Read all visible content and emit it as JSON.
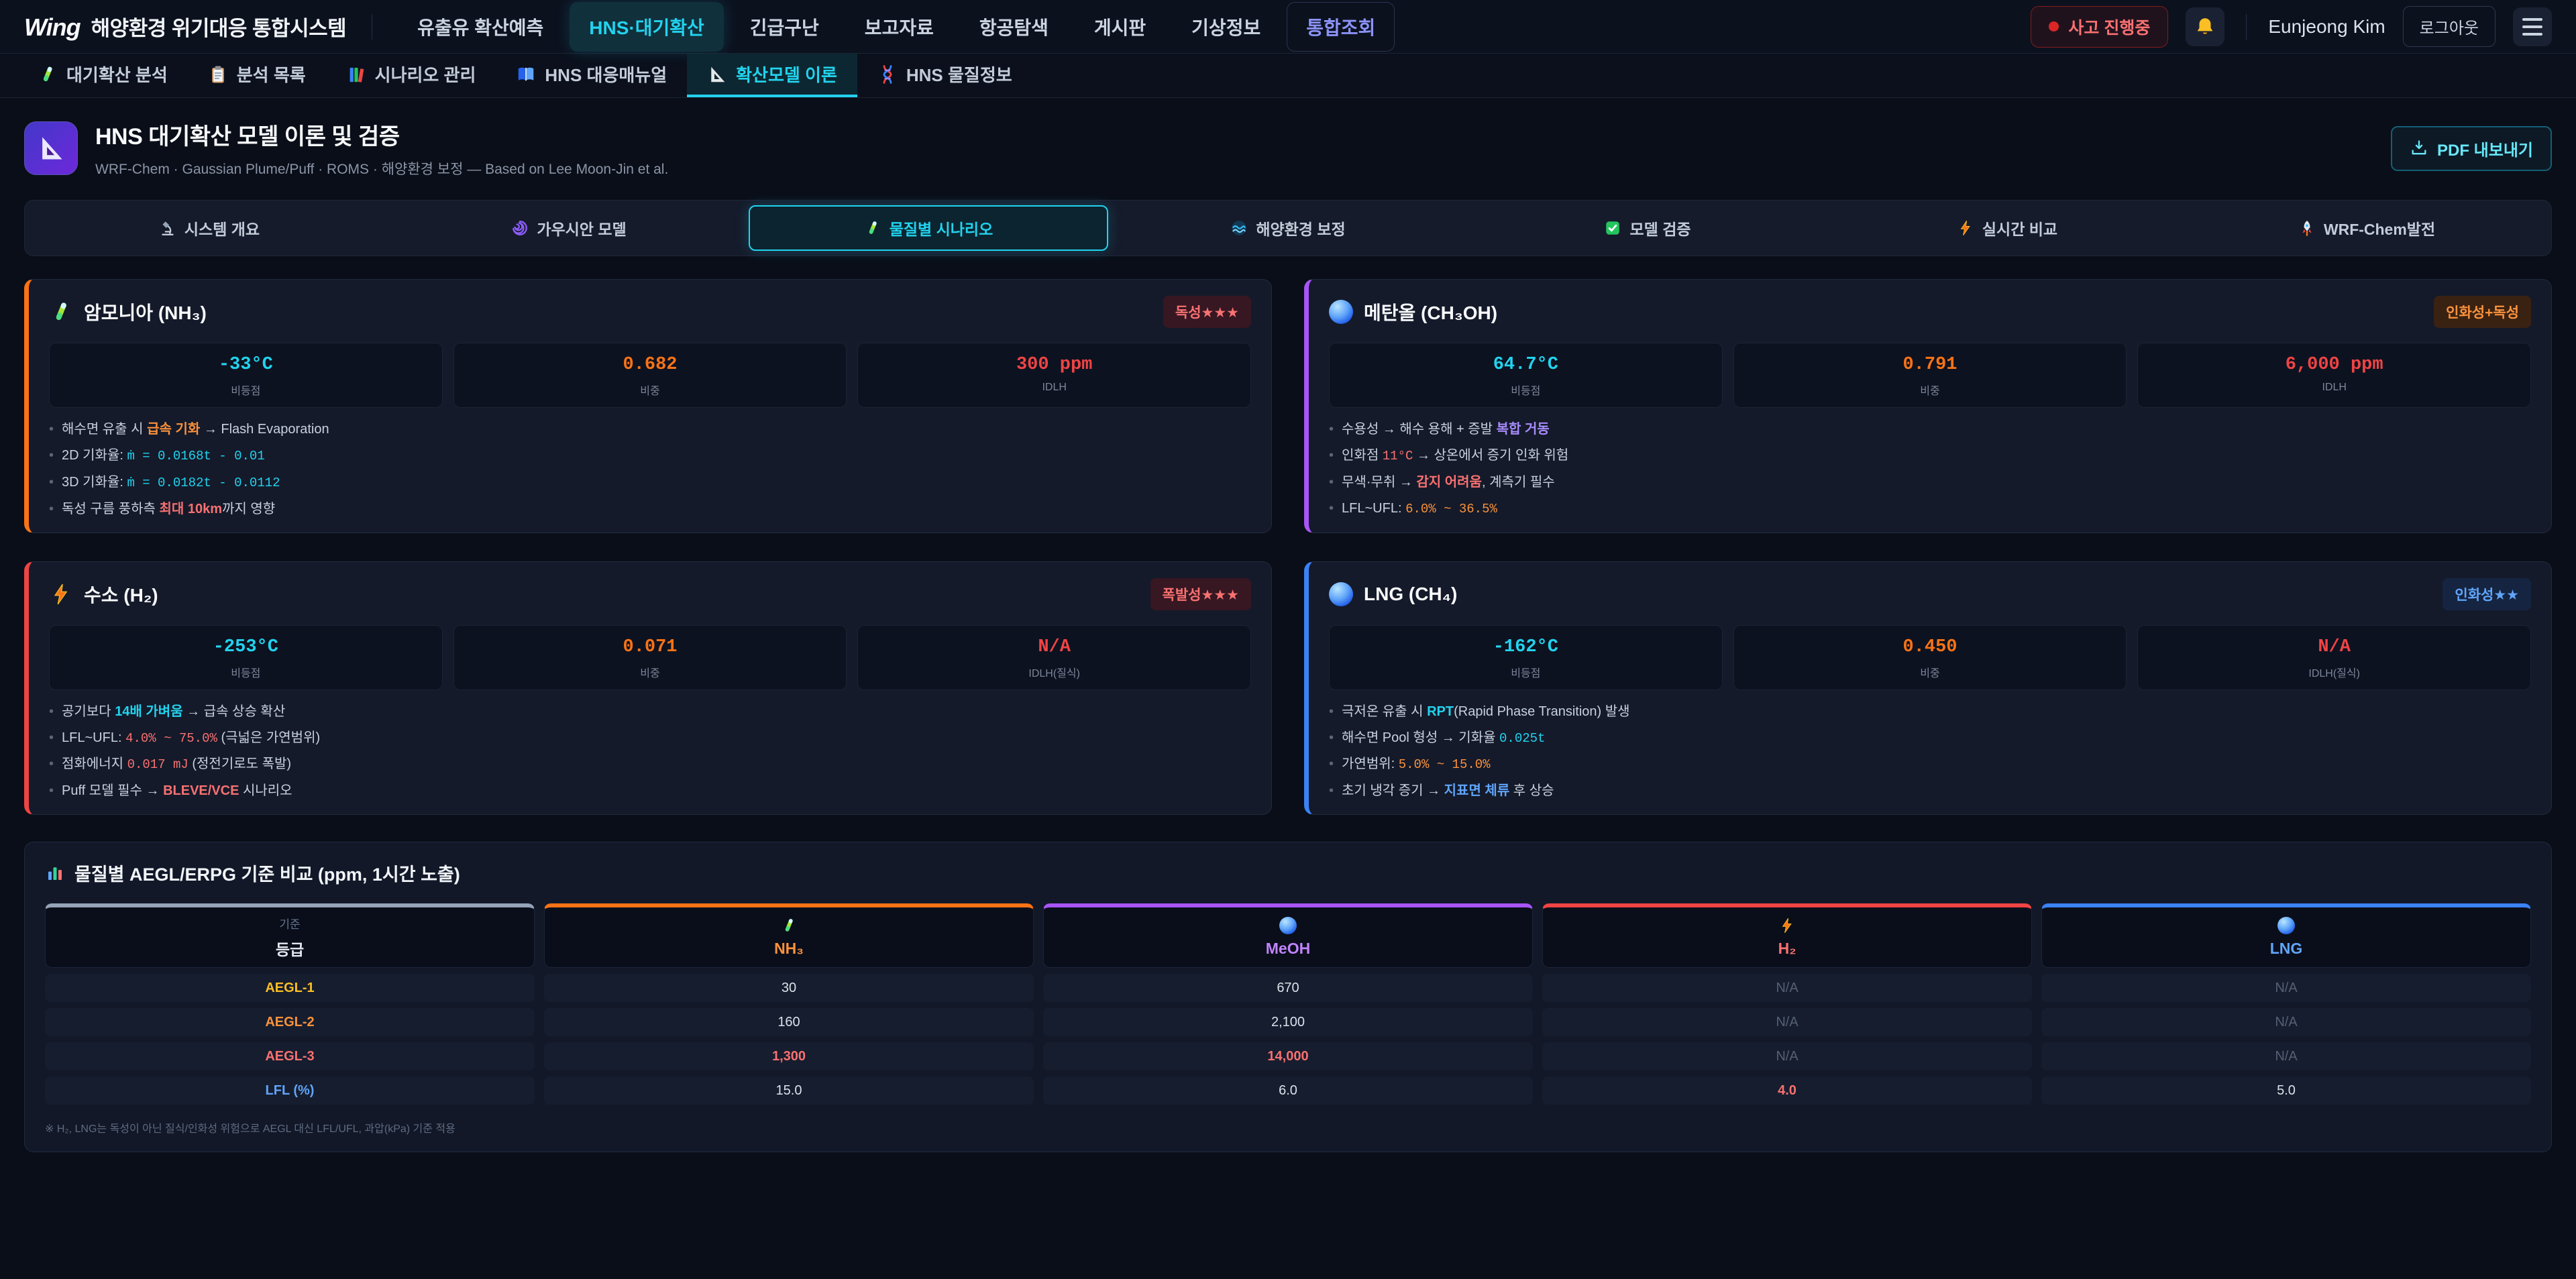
{
  "topnav": {
    "logo_mark": "Wing",
    "logo_text": "해양환경 위기대응 통합시스템",
    "items": [
      {
        "id": "oil-spill-forecast",
        "label": "유출유 확산예측",
        "state": "normal"
      },
      {
        "id": "hns-air-diffusion",
        "label": "HNS·대기확산",
        "state": "active"
      },
      {
        "id": "emergency-rescue",
        "label": "긴급구난",
        "state": "normal"
      },
      {
        "id": "reports",
        "label": "보고자료",
        "state": "normal"
      },
      {
        "id": "air-search",
        "label": "항공탐색",
        "state": "normal"
      },
      {
        "id": "board",
        "label": "게시판",
        "state": "normal"
      },
      {
        "id": "weather-info",
        "label": "기상정보",
        "state": "normal"
      },
      {
        "id": "integrated-search",
        "label": "통합조회",
        "state": "accent"
      }
    ],
    "incident_badge": "사고 진행중",
    "user_name": "Eunjeong Kim",
    "logout_label": "로그아웃"
  },
  "subtabs": [
    {
      "id": "air-diffusion-analysis",
      "label": "대기확산 분석",
      "icon": "test-tube",
      "active": false
    },
    {
      "id": "analysis-list",
      "label": "분석 목록",
      "icon": "clipboard",
      "active": false
    },
    {
      "id": "scenario-management",
      "label": "시나리오 관리",
      "icon": "books",
      "active": false
    },
    {
      "id": "hns-response-manual",
      "label": "HNS 대응매뉴얼",
      "icon": "open-book",
      "active": false
    },
    {
      "id": "diffusion-model-theory",
      "label": "확산모델 이론",
      "icon": "set-square",
      "active": true
    },
    {
      "id": "hns-substance-info",
      "label": "HNS 물질정보",
      "icon": "dna",
      "active": false
    }
  ],
  "header": {
    "title": "HNS 대기확산 모델 이론 및 검증",
    "subtitle": "WRF-Chem · Gaussian Plume/Puff · ROMS · 해양환경 보정 — Based on Lee Moon-Jin et al.",
    "pdf_button": "PDF 내보내기"
  },
  "section_tabs": [
    {
      "id": "system-overview",
      "label": "시스템 개요",
      "icon": "microscope",
      "active": false
    },
    {
      "id": "gaussian-model",
      "label": "가우시안 모델",
      "icon": "swirl",
      "active": false
    },
    {
      "id": "substance-scenarios",
      "label": "물질별 시나리오",
      "icon": "test-tube",
      "active": true
    },
    {
      "id": "marine-env-correction",
      "label": "해양환경 보정",
      "icon": "wave",
      "active": false
    },
    {
      "id": "model-validation",
      "label": "모델 검증",
      "icon": "check",
      "active": false
    },
    {
      "id": "realtime-comparison",
      "label": "실시간 비교",
      "icon": "bolt",
      "active": false
    },
    {
      "id": "wrf-chem-evolution",
      "label": "WRF-Chem발전",
      "icon": "rocket",
      "active": false
    }
  ],
  "cards": [
    {
      "id": "nh3",
      "accent": "#f97316",
      "icon": "test-tube",
      "title": "암모니아 (NH₃)",
      "badge": {
        "label": "독성★★★",
        "text": "#f87171",
        "bg": "#371722"
      },
      "stats": [
        {
          "value": "-33°C",
          "color": "#22d3ee",
          "label": "비등점"
        },
        {
          "value": "0.682",
          "color": "#f97316",
          "label": "비중"
        },
        {
          "value": "300 ppm",
          "color": "#ef4444",
          "label": "IDLH"
        }
      ],
      "bullets": [
        [
          {
            "t": "해수면 유출 시 "
          },
          {
            "t": "급속 기화",
            "s": "hl-o"
          },
          {
            "t": " → Flash Evaporation"
          }
        ],
        [
          {
            "t": "2D 기화율: "
          },
          {
            "t": "ṁ = 0.0168t - 0.01",
            "s": "m-c"
          }
        ],
        [
          {
            "t": "3D 기화율: "
          },
          {
            "t": "ṁ = 0.0182t - 0.0112",
            "s": "m-c"
          }
        ],
        [
          {
            "t": "독성 구름 풍하측 "
          },
          {
            "t": "최대 10km",
            "s": "hl-r"
          },
          {
            "t": "까지 영향"
          }
        ]
      ]
    },
    {
      "id": "meoh",
      "accent": "#a855f7",
      "icon": "sphere",
      "title": "메탄올 (CH₃OH)",
      "badge": {
        "label": "인화성+독성",
        "text": "#fb923c",
        "bg": "#3a2212"
      },
      "stats": [
        {
          "value": "64.7°C",
          "color": "#22d3ee",
          "label": "비등점"
        },
        {
          "value": "0.791",
          "color": "#f97316",
          "label": "비중"
        },
        {
          "value": "6,000 ppm",
          "color": "#ef4444",
          "label": "IDLH"
        }
      ],
      "bullets": [
        [
          {
            "t": "수용성 → 해수 용해 + 증발 "
          },
          {
            "t": "복합 거동",
            "s": "hl-p"
          }
        ],
        [
          {
            "t": "인화점 "
          },
          {
            "t": "11°C",
            "s": "m-r"
          },
          {
            "t": " → 상온에서 증기 인화 위험"
          }
        ],
        [
          {
            "t": "무색·무취 → "
          },
          {
            "t": "감지 어려움",
            "s": "hl-r"
          },
          {
            "t": ", 계측기 필수"
          }
        ],
        [
          {
            "t": "LFL~UFL: "
          },
          {
            "t": "6.0% ~ 36.5%",
            "s": "m-o"
          }
        ]
      ]
    },
    {
      "id": "h2",
      "accent": "#ef4444",
      "icon": "bolt",
      "title": "수소 (H₂)",
      "badge": {
        "label": "폭발성★★★",
        "text": "#f87171",
        "bg": "#371722"
      },
      "stats": [
        {
          "value": "-253°C",
          "color": "#22d3ee",
          "label": "비등점"
        },
        {
          "value": "0.071",
          "color": "#f97316",
          "label": "비중"
        },
        {
          "value": "N/A",
          "color": "#ef4444",
          "label": "IDLH(질식)"
        }
      ],
      "bullets": [
        [
          {
            "t": "공기보다 "
          },
          {
            "t": "14배 가벼움",
            "s": "hl-c"
          },
          {
            "t": " → 급속 상승 확산"
          }
        ],
        [
          {
            "t": "LFL~UFL: "
          },
          {
            "t": "4.0% ~ 75.0%",
            "s": "m-r"
          },
          {
            "t": " (극넓은 가연범위)"
          }
        ],
        [
          {
            "t": "점화에너지 "
          },
          {
            "t": "0.017 mJ",
            "s": "m-r"
          },
          {
            "t": " (정전기로도 폭발)"
          }
        ],
        [
          {
            "t": "Puff 모델 필수 → "
          },
          {
            "t": "BLEVE/VCE",
            "s": "hl-r"
          },
          {
            "t": " 시나리오"
          }
        ]
      ]
    },
    {
      "id": "lng",
      "accent": "#3b82f6",
      "icon": "sphere",
      "title": "LNG (CH₄)",
      "badge": {
        "label": "인화성★★",
        "text": "#60a5fa",
        "bg": "#152441"
      },
      "stats": [
        {
          "value": "-162°C",
          "color": "#22d3ee",
          "label": "비등점"
        },
        {
          "value": "0.450",
          "color": "#f97316",
          "label": "비중"
        },
        {
          "value": "N/A",
          "color": "#ef4444",
          "label": "IDLH(질식)"
        }
      ],
      "bullets": [
        [
          {
            "t": "극저온 유출 시 "
          },
          {
            "t": "RPT",
            "s": "hl-c"
          },
          {
            "t": "(Rapid Phase Transition) 발생"
          }
        ],
        [
          {
            "t": "해수면 Pool 형성 → 기화율 "
          },
          {
            "t": "0.025t",
            "s": "m-c"
          }
        ],
        [
          {
            "t": "가연범위: "
          },
          {
            "t": "5.0% ~ 15.0%",
            "s": "m-o"
          }
        ],
        [
          {
            "t": "초기 냉각 증기 → "
          },
          {
            "t": "지표면 체류",
            "s": "hl-b"
          },
          {
            "t": " 후 상승"
          }
        ]
      ]
    }
  ],
  "aegl_table": {
    "title": "물질별 AEGL/ERPG 기준 비교 (ppm, 1시간 노출)",
    "columns": [
      {
        "sub": "기준",
        "name": "등급",
        "accent": "#94a3b8",
        "color": "#e2e8f0",
        "icon": ""
      },
      {
        "sub": "",
        "name": "NH₃",
        "accent": "#f97316",
        "color": "#fb923c",
        "icon": "test-tube"
      },
      {
        "sub": "",
        "name": "MeOH",
        "accent": "#a855f7",
        "color": "#c084fc",
        "icon": "sphere"
      },
      {
        "sub": "",
        "name": "H₂",
        "accent": "#ef4444",
        "color": "#f87171",
        "icon": "bolt"
      },
      {
        "sub": "",
        "name": "LNG",
        "accent": "#3b82f6",
        "color": "#60a5fa",
        "icon": "sphere"
      }
    ],
    "rows": [
      {
        "label": "AEGL-1",
        "color": "#fbbf24",
        "values": [
          {
            "t": "30"
          },
          {
            "t": "670"
          },
          {
            "t": "N/A",
            "s": "dim"
          },
          {
            "t": "N/A",
            "s": "dim"
          }
        ]
      },
      {
        "label": "AEGL-2",
        "color": "#fb923c",
        "values": [
          {
            "t": "160"
          },
          {
            "t": "2,100"
          },
          {
            "t": "N/A",
            "s": "dim"
          },
          {
            "t": "N/A",
            "s": "dim"
          }
        ]
      },
      {
        "label": "AEGL-3",
        "color": "#f87171",
        "values": [
          {
            "t": "1,300",
            "s": "red"
          },
          {
            "t": "14,000",
            "s": "red"
          },
          {
            "t": "N/A",
            "s": "dim"
          },
          {
            "t": "N/A",
            "s": "dim"
          }
        ]
      },
      {
        "label": "LFL (%)",
        "color": "#60a5fa",
        "values": [
          {
            "t": "15.0"
          },
          {
            "t": "6.0"
          },
          {
            "t": "4.0",
            "s": "red"
          },
          {
            "t": "5.0"
          }
        ]
      }
    ],
    "footnote": "※ H₂, LNG는 독성이 아닌 질식/인화성 위험으로 AEGL 대신 LFL/UFL, 과압(kPa) 기준 적용"
  }
}
